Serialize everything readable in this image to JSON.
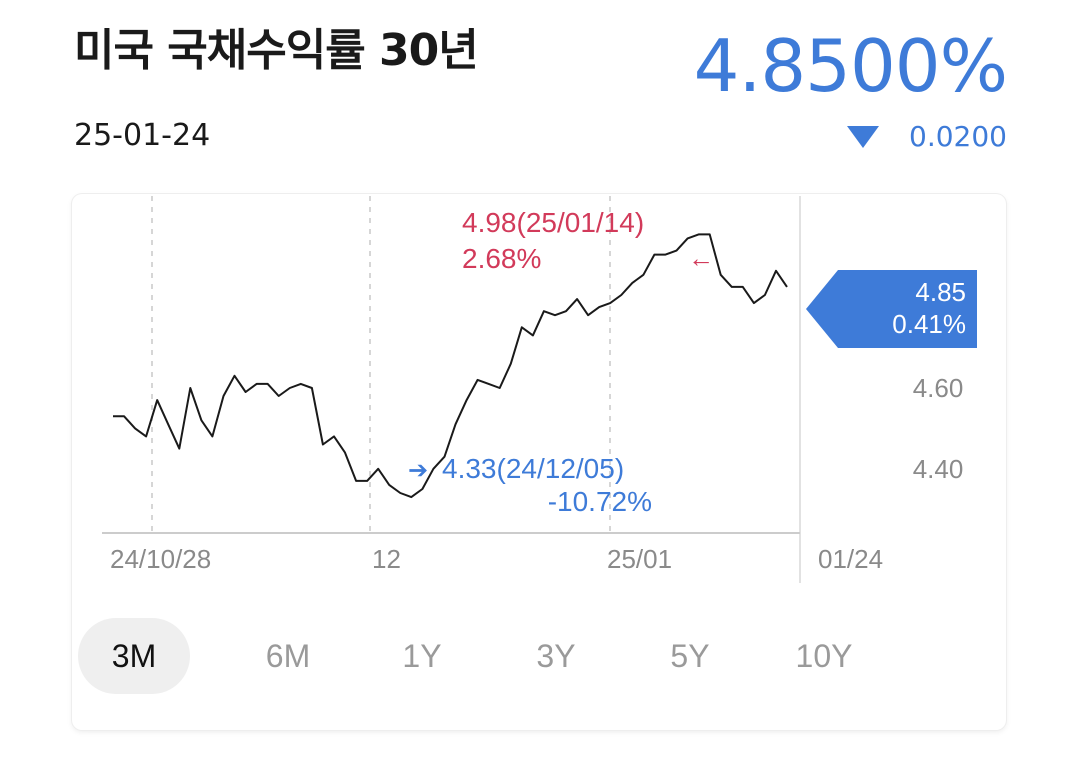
{
  "header": {
    "title": "미국 국채수익률 30년",
    "date": "25-01-24",
    "price": "4.8500%",
    "change": "0.0200",
    "change_direction": "down",
    "accent_color": "#3e7bd8",
    "high_color": "#d23a5a",
    "low_color": "#3e7bd8"
  },
  "chart_data": {
    "type": "line",
    "x_ticks": [
      "24/10/28",
      "12",
      "25/01",
      "01/24"
    ],
    "y_ticks": [
      "4.60",
      "4.40"
    ],
    "ylim": [
      4.1,
      5.08
    ],
    "series": [
      {
        "values": [
          4.53,
          4.53,
          4.5,
          4.48,
          4.57,
          4.51,
          4.45,
          4.6,
          4.52,
          4.48,
          4.58,
          4.63,
          4.59,
          4.61,
          4.61,
          4.58,
          4.6,
          4.61,
          4.6,
          4.46,
          4.48,
          4.44,
          4.37,
          4.37,
          4.4,
          4.36,
          4.34,
          4.33,
          4.35,
          4.4,
          4.43,
          4.51,
          4.57,
          4.62,
          4.61,
          4.6,
          4.66,
          4.75,
          4.73,
          4.79,
          4.78,
          4.79,
          4.82,
          4.78,
          4.8,
          4.81,
          4.83,
          4.86,
          4.88,
          4.93,
          4.93,
          4.94,
          4.97,
          4.98,
          4.98,
          4.88,
          4.85,
          4.85,
          4.81,
          4.83,
          4.89,
          4.85
        ]
      }
    ],
    "annotations": {
      "high": {
        "value_label": "4.98(25/01/14)",
        "pct_label": "2.68%",
        "arrow": "←"
      },
      "low": {
        "value_label": "4.33(24/12/05)",
        "pct_label": "-10.72%",
        "arrow": "➔"
      },
      "current": {
        "value_label": "4.85",
        "pct_label": "0.41%"
      }
    },
    "grid": "dashed-vertical"
  },
  "ranges": [
    {
      "label": "3M",
      "active": true
    },
    {
      "label": "6M",
      "active": false
    },
    {
      "label": "1Y",
      "active": false
    },
    {
      "label": "3Y",
      "active": false
    },
    {
      "label": "5Y",
      "active": false
    },
    {
      "label": "10Y",
      "active": false
    }
  ]
}
